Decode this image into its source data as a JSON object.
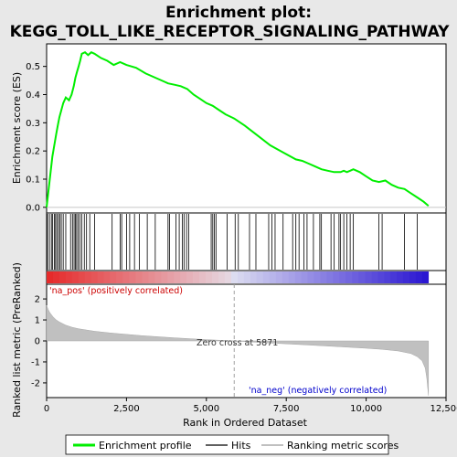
{
  "chart_data": {
    "type": "line",
    "title_line1": "Enrichment plot:",
    "title_line2": "KEGG_TOLL_LIKE_RECEPTOR_SIGNALING_PATHWAY",
    "es_panel": {
      "ylabel": "Enrichment score (ES)",
      "ylim": [
        -0.02,
        0.58
      ],
      "yticks": [
        "0.0",
        "0.1",
        "0.2",
        "0.3",
        "0.4",
        "0.5"
      ],
      "ytick_values": [
        0.0,
        0.1,
        0.2,
        0.3,
        0.4,
        0.5
      ],
      "series": [
        {
          "name": "Enrichment profile",
          "color": "#00ee00",
          "x": [
            0,
            60,
            120,
            180,
            240,
            300,
            350,
            400,
            450,
            520,
            600,
            700,
            780,
            850,
            900,
            950,
            1000,
            1050,
            1100,
            1200,
            1300,
            1400,
            1500,
            1700,
            1900,
            2100,
            2300,
            2500,
            2800,
            3100,
            3400,
            3700,
            3800,
            4000,
            4200,
            4400,
            4600,
            4800,
            5000,
            5200,
            5400,
            5600,
            5871,
            6200,
            6600,
            7000,
            7400,
            7800,
            8000,
            8200,
            8400,
            8600,
            8800,
            9000,
            9200,
            9300,
            9400,
            9500,
            9600,
            9800,
            10000,
            10200,
            10400,
            10600,
            10800,
            11000,
            11200,
            11400,
            11600,
            11800,
            11950
          ],
          "y": [
            0.0,
            0.06,
            0.12,
            0.18,
            0.22,
            0.26,
            0.29,
            0.32,
            0.34,
            0.37,
            0.39,
            0.38,
            0.4,
            0.43,
            0.46,
            0.48,
            0.5,
            0.52,
            0.545,
            0.55,
            0.54,
            0.55,
            0.545,
            0.53,
            0.52,
            0.505,
            0.515,
            0.505,
            0.495,
            0.475,
            0.46,
            0.445,
            0.44,
            0.435,
            0.43,
            0.42,
            0.4,
            0.385,
            0.37,
            0.36,
            0.345,
            0.33,
            0.315,
            0.29,
            0.255,
            0.22,
            0.195,
            0.17,
            0.165,
            0.155,
            0.145,
            0.135,
            0.13,
            0.125,
            0.125,
            0.13,
            0.125,
            0.13,
            0.135,
            0.125,
            0.11,
            0.095,
            0.09,
            0.095,
            0.08,
            0.07,
            0.065,
            0.05,
            0.035,
            0.02,
            0.005
          ]
        }
      ]
    },
    "hits": [
      30,
      90,
      150,
      190,
      240,
      280,
      320,
      370,
      410,
      460,
      520,
      600,
      750,
      810,
      860,
      900,
      940,
      990,
      1040,
      1100,
      1180,
      1250,
      1350,
      1500,
      2050,
      2300,
      2350,
      2500,
      2600,
      2750,
      2900,
      3150,
      3400,
      3800,
      3850,
      4050,
      4150,
      4250,
      4300,
      4380,
      4450,
      5150,
      5200,
      5250,
      5300,
      5650,
      5900,
      6000,
      6350,
      6550,
      6950,
      7050,
      7150,
      7400,
      7700,
      7800,
      7900,
      8050,
      8150,
      8350,
      8550,
      8600,
      8900,
      9000,
      9150,
      9200,
      9300,
      9400,
      9500,
      9600,
      10400,
      10500,
      11200,
      11600
    ],
    "metric_panel": {
      "ylabel": "Ranked list metric (PreRanked)",
      "ylim": [
        -2.7,
        2.7
      ],
      "yticks": [
        "2",
        "1",
        "0",
        "-1",
        "-2"
      ],
      "ytick_values": [
        2,
        1,
        0,
        -1,
        -2
      ],
      "series": [
        {
          "name": "Ranking metric scores",
          "color": "#c0c0c0",
          "x": [
            0,
            50,
            100,
            200,
            300,
            400,
            600,
            800,
            1000,
            1500,
            2000,
            3000,
            4000,
            5000,
            5871,
            7000,
            8000,
            9000,
            10000,
            10500,
            11000,
            11400,
            11600,
            11750,
            11850,
            11900,
            11950
          ],
          "y": [
            1.7,
            1.5,
            1.35,
            1.15,
            1.0,
            0.9,
            0.75,
            0.65,
            0.58,
            0.46,
            0.38,
            0.25,
            0.15,
            0.06,
            0.0,
            -0.1,
            -0.18,
            -0.26,
            -0.35,
            -0.4,
            -0.48,
            -0.6,
            -0.75,
            -0.95,
            -1.3,
            -1.8,
            -2.6
          ]
        }
      ],
      "zero_cross_label": "Zero cross at 5871",
      "zero_cross": 5871,
      "pos_label": "'na_pos' (positively correlated)",
      "neg_label": "'na_neg' (negatively correlated)"
    },
    "xaxis": {
      "xlabel": "Rank in Ordered Dataset",
      "xlim": [
        0,
        12500
      ],
      "xticks": [
        "0",
        "2,500",
        "5,000",
        "7,500",
        "10,000",
        "12,500"
      ],
      "xtick_values": [
        0,
        2500,
        5000,
        7500,
        10000,
        12500
      ],
      "n": 11950
    },
    "legend": [
      {
        "name": "Enrichment profile",
        "color": "#00ee00"
      },
      {
        "name": "Hits",
        "color": "#000000"
      },
      {
        "name": "Ranking metric scores",
        "color": "#c0c0c0"
      }
    ],
    "colors": {
      "pos_text": "#cc0000",
      "neg_text": "#0000cc",
      "zero_line": "#a0a0a0"
    }
  }
}
